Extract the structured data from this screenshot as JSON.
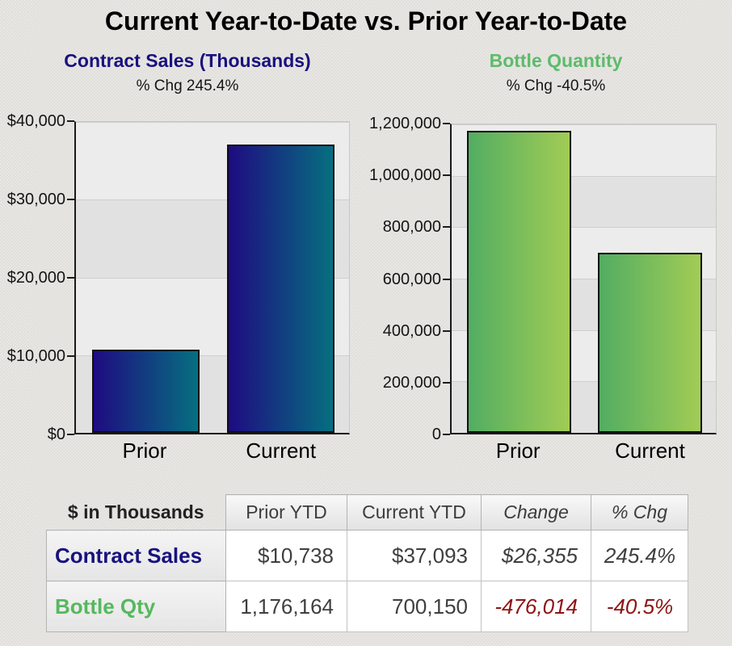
{
  "page": {
    "title": "Current Year-to-Date vs. Prior Year-to-Date"
  },
  "chart_data": [
    {
      "type": "bar",
      "title": "Contract Sales (Thousands)",
      "subtitle": "% Chg 245.4%",
      "title_color": "#18127e",
      "categories": [
        "Prior",
        "Current"
      ],
      "values": [
        10738,
        37093
      ],
      "ylim": [
        0,
        40000
      ],
      "ytick_labels": [
        "$0",
        "$10,000",
        "$20,000",
        "$30,000",
        "$40,000"
      ],
      "bar_gradient": [
        "#1e0b81",
        "#066f80"
      ],
      "grid": true,
      "legend": "none",
      "xlabel": "",
      "ylabel": ""
    },
    {
      "type": "bar",
      "title": "Bottle Quantity",
      "subtitle": "% Chg -40.5%",
      "title_color": "#5dbb6b",
      "categories": [
        "Prior",
        "Current"
      ],
      "values": [
        1176164,
        700150
      ],
      "ylim": [
        0,
        1200000
      ],
      "ytick_labels": [
        "0",
        "200,000",
        "400,000",
        "600,000",
        "800,000",
        "1,000,000",
        "1,200,000"
      ],
      "bar_gradient": [
        "#52ad62",
        "#a2cc55"
      ],
      "grid": true,
      "legend": "none",
      "xlabel": "",
      "ylabel": ""
    }
  ],
  "table": {
    "corner_label": "$ in Thousands",
    "columns": [
      "Prior YTD",
      "Current YTD",
      "Change",
      "% Chg"
    ],
    "rows": [
      {
        "label": "Contract Sales",
        "label_color": "#18127e",
        "values": [
          "$10,738",
          "$37,093",
          "$26,355",
          "245.4%"
        ]
      },
      {
        "label": "Bottle Qty",
        "label_color": "#55b95e",
        "values": [
          "1,176,164",
          "700,150",
          "-476,014",
          "-40.5%"
        ]
      }
    ],
    "negative_color": "#8e1414"
  }
}
